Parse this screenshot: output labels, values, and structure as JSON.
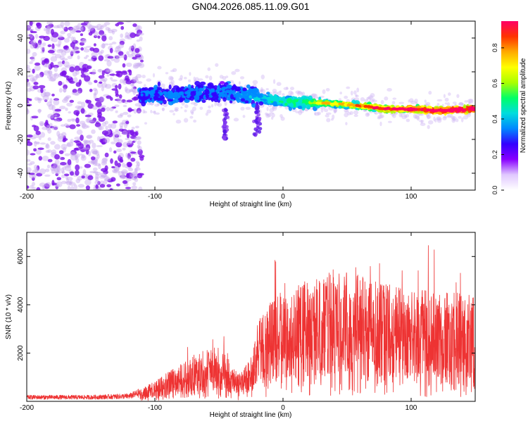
{
  "title": "GN04.2026.085.11.09.G01",
  "chart_data": [
    {
      "type": "heatmap",
      "title": "GN04.2026.085.11.09.G01",
      "xlabel": "Height of straight line (km)",
      "ylabel": "Frequency (Hz)",
      "xlim": [
        -200,
        150
      ],
      "ylim": [
        -50,
        50
      ],
      "xticks": [
        -200,
        -100,
        0,
        100
      ],
      "yticks": [
        -40,
        -20,
        0,
        20,
        40
      ],
      "colorbar": {
        "label": "Normalized spectral amplitude",
        "range": [
          0,
          0.95
        ],
        "ticks": [
          0.0,
          0.2,
          0.4,
          0.6,
          0.8
        ],
        "tick_labels": [
          "0.0",
          "0.2",
          "0.4",
          "0.6",
          "0.8"
        ],
        "colormap": [
          "#ffffff",
          "#e0c8ff",
          "#8800ff",
          "#3300ff",
          "#0088ff",
          "#00dddd",
          "#00ff66",
          "#aaff00",
          "#ffff00",
          "#ffaa00",
          "#ff3300",
          "#ff0066"
        ]
      },
      "ridge": [
        {
          "x": -110,
          "y": 6
        },
        {
          "x": -80,
          "y": 7
        },
        {
          "x": -60,
          "y": 8
        },
        {
          "x": -40,
          "y": 8
        },
        {
          "x": -20,
          "y": 5
        },
        {
          "x": 0,
          "y": 2
        },
        {
          "x": 20,
          "y": 2
        },
        {
          "x": 40,
          "y": 1
        },
        {
          "x": 60,
          "y": 0
        },
        {
          "x": 80,
          "y": -2
        },
        {
          "x": 100,
          "y": -2
        },
        {
          "x": 120,
          "y": -3
        },
        {
          "x": 150,
          "y": -2
        }
      ]
    },
    {
      "type": "line",
      "xlabel": "Height of straight line (km)",
      "ylabel": "SNR (10 * v/v)",
      "xlim": [
        -200,
        150
      ],
      "ylim": [
        0,
        7000
      ],
      "xticks": [
        -200,
        -100,
        0,
        100
      ],
      "yticks": [
        2000,
        4000,
        6000
      ],
      "color": "#ee3333",
      "envelope": [
        {
          "x": -200,
          "y": 200
        },
        {
          "x": -150,
          "y": 200
        },
        {
          "x": -120,
          "y": 250
        },
        {
          "x": -110,
          "y": 450
        },
        {
          "x": -100,
          "y": 700
        },
        {
          "x": -80,
          "y": 1300
        },
        {
          "x": -60,
          "y": 1800
        },
        {
          "x": -45,
          "y": 1700
        },
        {
          "x": -35,
          "y": 900
        },
        {
          "x": -25,
          "y": 1500
        },
        {
          "x": -20,
          "y": 2700
        },
        {
          "x": -10,
          "y": 3500
        },
        {
          "x": 0,
          "y": 3700
        },
        {
          "x": 20,
          "y": 4200
        },
        {
          "x": 40,
          "y": 4500
        },
        {
          "x": 60,
          "y": 4400
        },
        {
          "x": 80,
          "y": 4000
        },
        {
          "x": 100,
          "y": 3900
        },
        {
          "x": 120,
          "y": 3800
        },
        {
          "x": 150,
          "y": 3700
        }
      ]
    }
  ]
}
